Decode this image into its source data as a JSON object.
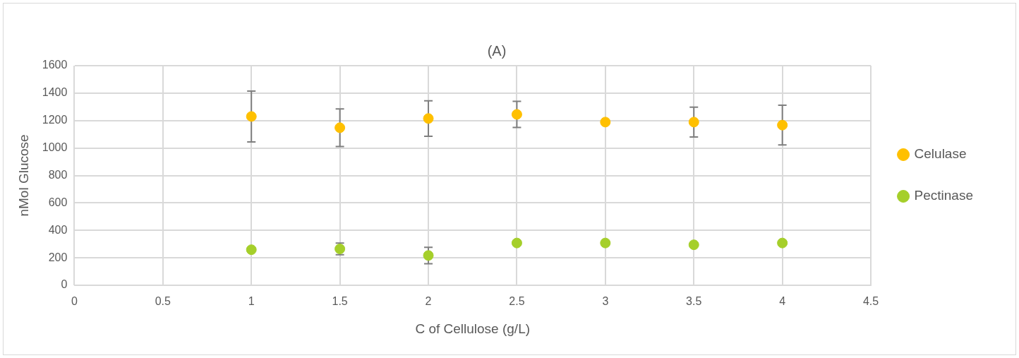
{
  "chart_data": {
    "type": "scatter",
    "title": "(A)",
    "xlabel": "C of Cellulose (g/L)",
    "ylabel": "nMol Glucose",
    "x": [
      1,
      1.5,
      2,
      2.5,
      3,
      3.5,
      4
    ],
    "series": [
      {
        "name": "Celulase",
        "color": "#ffc000",
        "values": [
          1230,
          1148,
          1215,
          1245,
          1189,
          1189,
          1167
        ],
        "errors": [
          185,
          137,
          129,
          95,
          null,
          109,
          145
        ]
      },
      {
        "name": "Pectinase",
        "color": "#a5cf2a",
        "values": [
          259,
          265,
          217,
          308,
          308,
          295,
          308
        ],
        "errors": [
          null,
          42,
          60,
          null,
          null,
          null,
          null
        ]
      }
    ],
    "xlim": [
      0,
      4.5
    ],
    "xticks": [
      0,
      0.5,
      1,
      1.5,
      2,
      2.5,
      3,
      3.5,
      4,
      4.5
    ],
    "ylim": [
      0,
      1600
    ],
    "yticks": [
      0,
      200,
      400,
      600,
      800,
      1000,
      1200,
      1400,
      1600
    ],
    "grid": true,
    "legend": "right",
    "marker": "circle"
  }
}
